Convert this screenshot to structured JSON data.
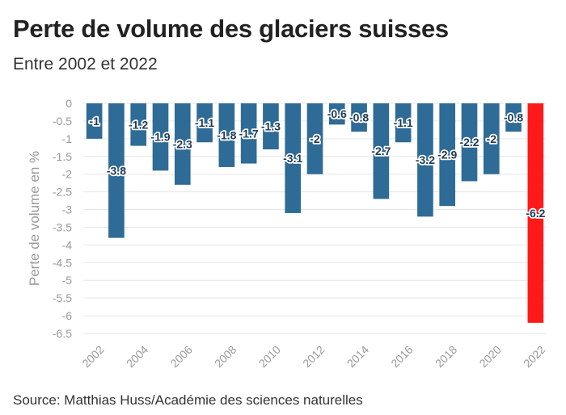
{
  "title": "Perte de volume des glaciers suisses",
  "subtitle": "Entre 2002 et 2022",
  "source": "Source: Matthias Huss/Académie des sciences naturelles",
  "colors": {
    "bar": "#2e6b96",
    "highlight": "#ff1a1a",
    "grid": "#e6e6e6",
    "axis_text": "#999999",
    "label_text": "#1f3b57",
    "label_bg": "#ffffff"
  },
  "chart_data": {
    "type": "bar",
    "title": "Perte de volume des glaciers suisses",
    "subtitle": "Entre 2002 et 2022",
    "xlabel": "",
    "ylabel": "Perte de volume en %",
    "ylim": [
      -6.5,
      0
    ],
    "yticks": [
      0,
      -0.5,
      -1,
      -1.5,
      -2,
      -2.5,
      -3,
      -3.5,
      -4,
      -4.5,
      -5,
      -5.5,
      -6,
      -6.5
    ],
    "ytick_labels": [
      "0",
      "-0.5",
      "-1",
      "-1.5",
      "-2",
      "-2.5",
      "-3",
      "-3.5",
      "-4",
      "-4.5",
      "-5",
      "-5.5",
      "-6",
      "-6.5"
    ],
    "categories": [
      "2002",
      "2003",
      "2004",
      "2005",
      "2006",
      "2007",
      "2008",
      "2009",
      "2010",
      "2011",
      "2012",
      "2013",
      "2014",
      "2015",
      "2016",
      "2017",
      "2018",
      "2019",
      "2020",
      "2021",
      "2022"
    ],
    "xtick_labels": [
      "2002",
      "2004",
      "2006",
      "2008",
      "2010",
      "2012",
      "2014",
      "2016",
      "2018",
      "2020",
      "2022"
    ],
    "values": [
      -1,
      -3.8,
      -1.2,
      -1.9,
      -2.3,
      -1.1,
      -1.8,
      -1.7,
      -1.3,
      -3.1,
      -2,
      -0.6,
      -0.8,
      -2.7,
      -1.1,
      -3.2,
      -2.9,
      -2.2,
      -2,
      -0.8,
      -6.2
    ],
    "data_labels": [
      "-1",
      "-3.8",
      "-1.2",
      "-1.9",
      "-2.3",
      "-1.1",
      "-1.8",
      "-1.7",
      "-1.3",
      "-3.1",
      "-2",
      "-0.6",
      "-0.8",
      "-2.7",
      "-1.1",
      "-3.2",
      "-2.9",
      "-2.2",
      "-2",
      "-0.8",
      "-6.2"
    ],
    "highlight_category": "2022",
    "grid": true,
    "legend": "none"
  }
}
